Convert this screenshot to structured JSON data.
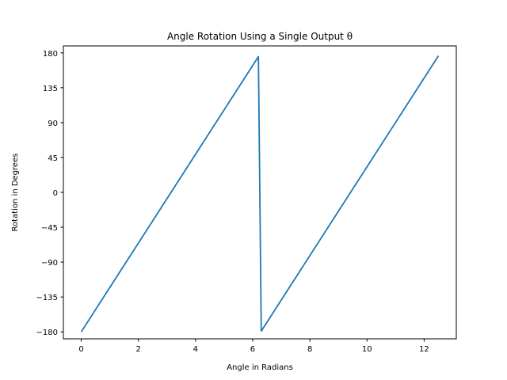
{
  "chart_data": {
    "type": "line",
    "title": "Angle Rotation Using a Single Output θ",
    "xlabel": "Angle in Radians",
    "ylabel": "Rotation in Degrees",
    "xlim": [
      -0.625,
      13.125
    ],
    "ylim": [
      -189,
      189
    ],
    "xticks": [
      0,
      2,
      4,
      6,
      8,
      10,
      12
    ],
    "yticks": [
      -180,
      -135,
      -90,
      -45,
      0,
      45,
      90,
      135,
      180
    ],
    "yticklabels": [
      "−180",
      "−135",
      "−90",
      "−45",
      "0",
      "45",
      "90",
      "135",
      "180"
    ],
    "grid": false,
    "legend": "none",
    "series": [
      {
        "color": "#1f77b4",
        "x": [
          0,
          6.2,
          6.3,
          12.5
        ],
        "y": [
          -180,
          175.2,
          -179,
          176.2
        ]
      }
    ]
  }
}
